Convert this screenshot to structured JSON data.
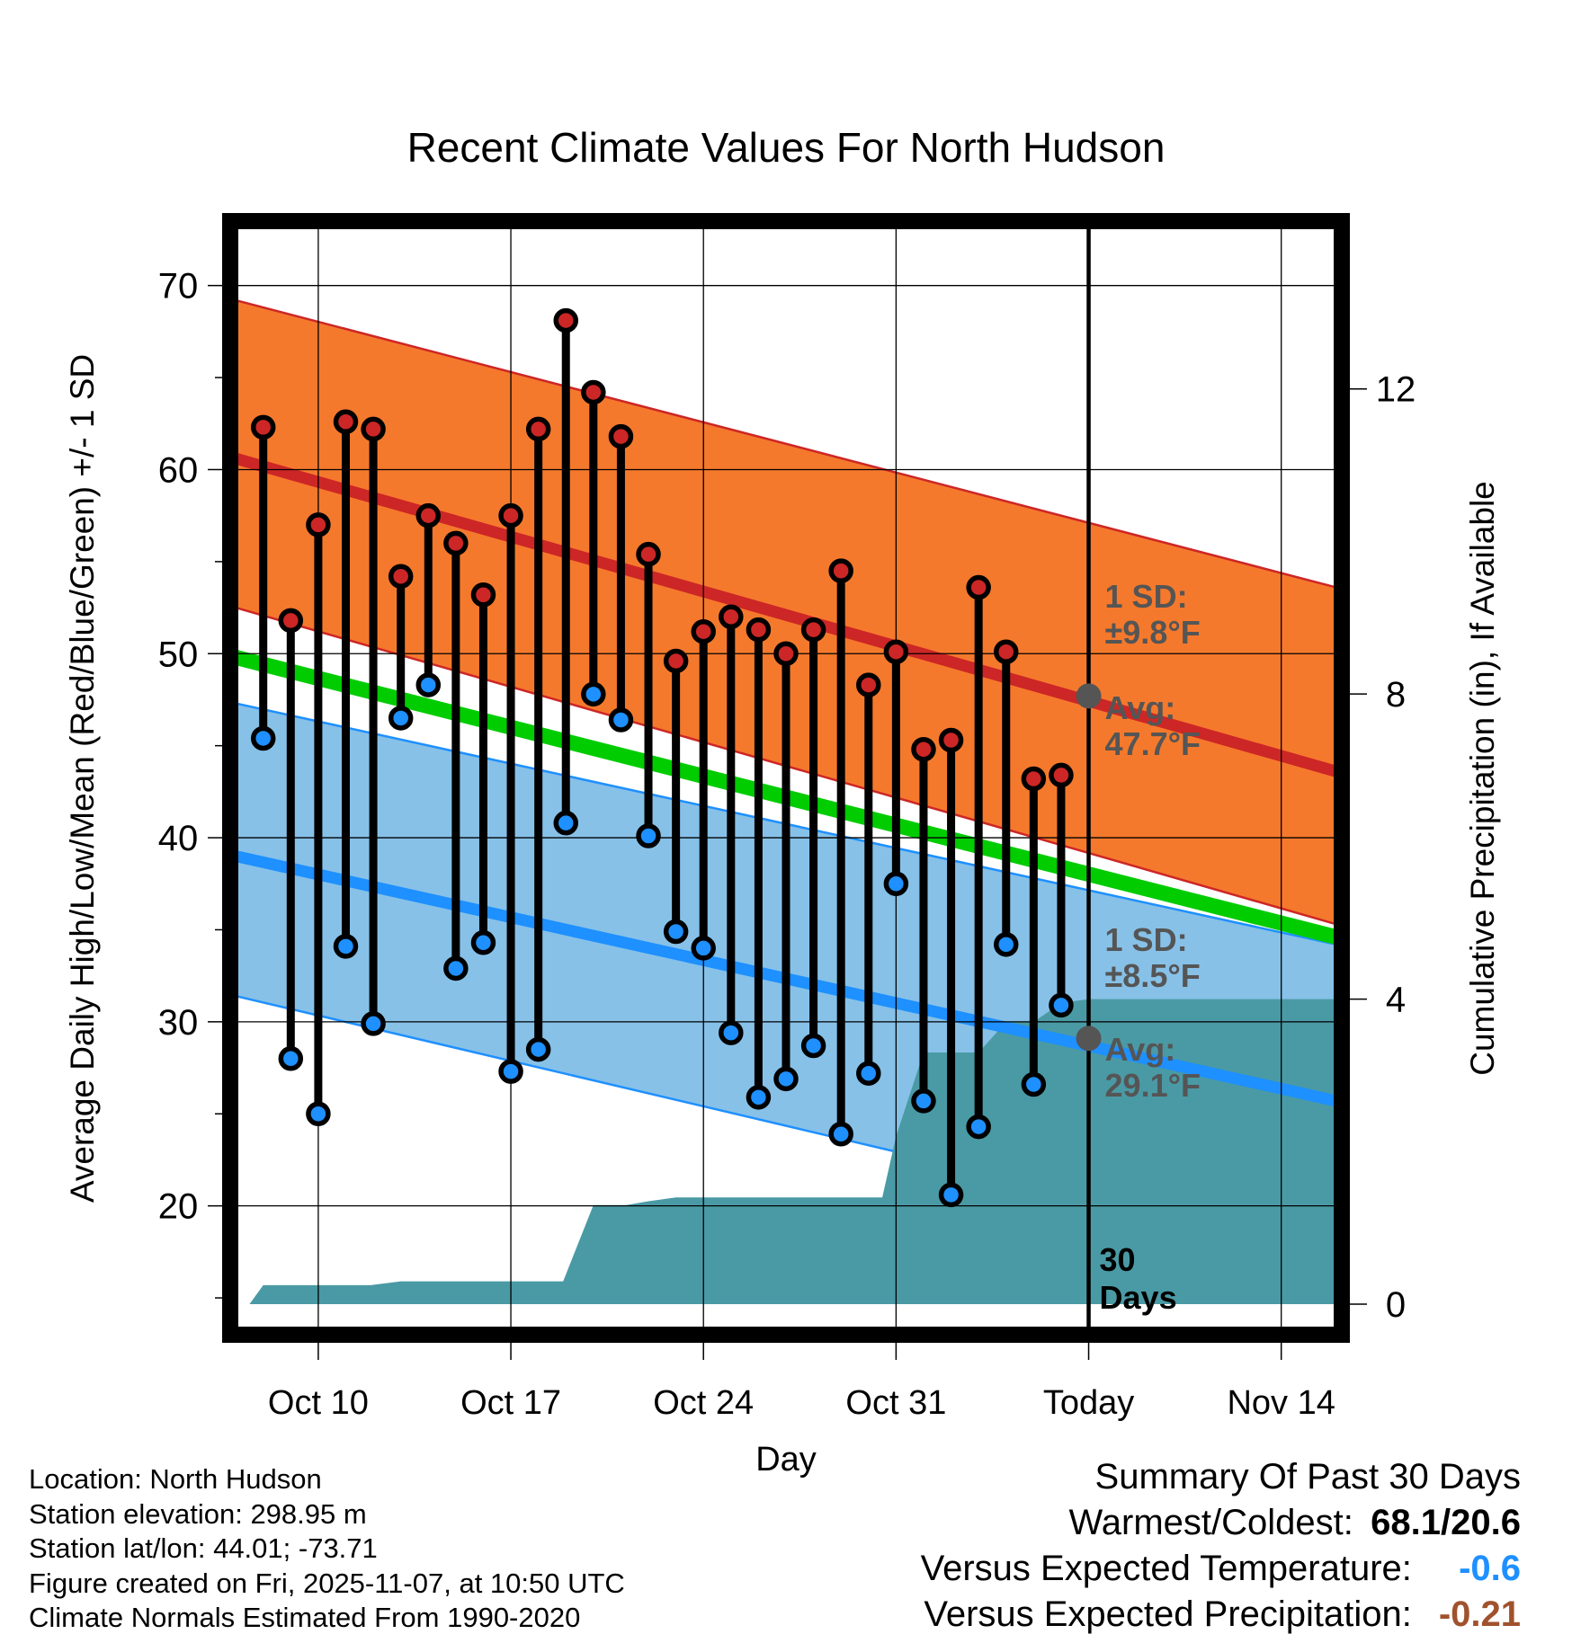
{
  "chart_data": {
    "type": "line",
    "title": "Recent Climate Values For North Hudson",
    "xlabel": "Day",
    "ylabel": "Average Daily High/Low/Mean (Red/Blue/Green) +/- 1 SD",
    "y2label": "Cumulative Precipitation (in), If Available",
    "xlim": [
      -3.2,
      37.2
    ],
    "ylim": [
      13,
      73.5
    ],
    "y2lim": [
      -0.4,
      14.2
    ],
    "yticks": [
      20,
      30,
      40,
      50,
      60,
      70
    ],
    "y2ticks": [
      0,
      4,
      8,
      12
    ],
    "xticks": [
      {
        "day": 0,
        "label": "Oct 10"
      },
      {
        "day": 7,
        "label": "Oct 17"
      },
      {
        "day": 14,
        "label": "Oct 24"
      },
      {
        "day": 21,
        "label": "Oct 31"
      },
      {
        "day": 28,
        "label": "Today"
      },
      {
        "day": 35,
        "label": "Nov 14"
      }
    ],
    "today_label": "Today",
    "normals": {
      "days": [
        -3,
        37
      ],
      "high_avg": [
        60.6,
        43.6
      ],
      "high_upper": [
        69.2,
        53.6
      ],
      "high_lower": [
        52.5,
        35.3
      ],
      "low_avg": [
        39.0,
        25.7
      ],
      "low_upper": [
        47.3,
        34.2
      ],
      "low_lower": [
        31.4,
        17.3
      ],
      "mean_avg": [
        49.8,
        34.6
      ]
    },
    "series": [
      {
        "name": "Daily High",
        "color": "#cd2626",
        "days": [
          -2,
          -1,
          0,
          1,
          2,
          3,
          4,
          5,
          6,
          7,
          8,
          9,
          10,
          11,
          12,
          13,
          14,
          15,
          16,
          17,
          18,
          19,
          20,
          21,
          22,
          23,
          24,
          25,
          26,
          27
        ],
        "values": [
          62.3,
          51.8,
          57.0,
          62.6,
          62.2,
          54.2,
          57.5,
          56.0,
          53.2,
          57.5,
          62.2,
          68.1,
          64.2,
          61.8,
          55.4,
          49.6,
          51.2,
          52.0,
          51.3,
          50.0,
          51.3,
          54.5,
          48.3,
          50.1,
          44.8,
          45.3,
          53.6,
          50.1,
          43.2,
          43.4
        ]
      },
      {
        "name": "Daily Low",
        "color": "#1e90ff",
        "days": [
          -2,
          -1,
          0,
          1,
          2,
          3,
          4,
          5,
          6,
          7,
          8,
          9,
          10,
          11,
          12,
          13,
          14,
          15,
          16,
          17,
          18,
          19,
          20,
          21,
          22,
          23,
          24,
          25,
          26,
          27
        ],
        "values": [
          45.4,
          28.0,
          25.0,
          34.1,
          29.9,
          46.5,
          48.3,
          32.9,
          34.3,
          27.3,
          28.5,
          40.8,
          47.8,
          46.4,
          40.1,
          34.9,
          34.0,
          29.4,
          25.9,
          26.9,
          28.7,
          23.9,
          27.2,
          37.5,
          25.7,
          20.6,
          24.3,
          34.2,
          26.6,
          30.9
        ]
      }
    ],
    "precip_cumulative": {
      "days": [
        -3,
        -2.5,
        -2,
        1.9,
        3,
        8.9,
        10,
        11.2,
        12,
        13,
        15,
        16,
        16.5,
        17,
        18,
        20.5,
        21,
        22,
        24,
        25,
        26,
        27,
        28,
        37
      ],
      "values": [
        0,
        0,
        0.25,
        0.25,
        0.3,
        0.3,
        1.3,
        1.3,
        1.35,
        1.4,
        1.4,
        1.4,
        1.4,
        1.4,
        1.4,
        1.4,
        2.2,
        3.3,
        3.3,
        3.7,
        3.7,
        3.95,
        4.0,
        4.0
      ],
      "label_line1": "30",
      "label_line2": "Days"
    },
    "annotations": {
      "high_sd_line1": "1 SD:",
      "high_sd_line2": "±9.8°F",
      "high_avg_line1": "Avg:",
      "high_avg_line2": "47.7°F",
      "high_avg_value": 47.7,
      "low_sd_line1": "1 SD:",
      "low_sd_line2": "±8.5°F",
      "low_avg_line1": "Avg:",
      "low_avg_line2": "29.1°F",
      "low_avg_value": 29.1
    },
    "colors": {
      "high_band": "#f5792c",
      "high_line": "#cd2626",
      "low_band": "#87c1e8",
      "low_line": "#1e90ff",
      "mean_line": "#00cc00",
      "precip": "#4a9aa5",
      "annotation": "#555555"
    }
  },
  "footer": {
    "location": "Location: North Hudson",
    "elevation": "Station elevation: 298.95 m",
    "latlon": "Station lat/lon: 44.01; -73.71",
    "created": "Figure created on Fri, 2025-11-07, at 10:50 UTC",
    "normals": "Climate Normals Estimated From 1990-2020"
  },
  "summary": {
    "title": "Summary Of Past 30 Days",
    "warm_cold_label": "Warmest/Coldest:",
    "warm_cold_value": "68.1/20.6",
    "temp_label": "Versus Expected Temperature:",
    "temp_value": "-0.6",
    "temp_color": "#1e90ff",
    "precip_label": "Versus Expected Precipitation:",
    "precip_value": "-0.21",
    "precip_color": "#a0522d"
  }
}
